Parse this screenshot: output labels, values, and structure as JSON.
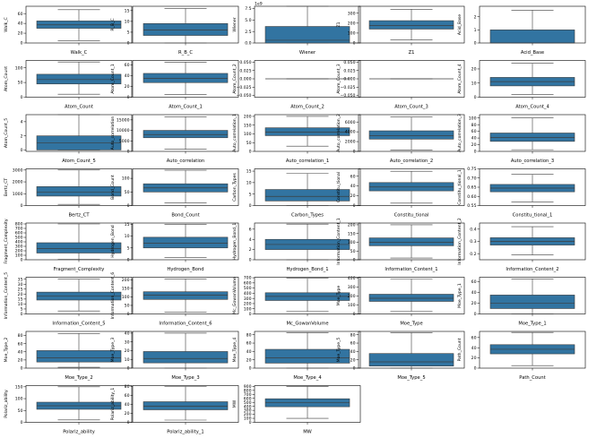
{
  "chart_data": [
    {
      "type": "box",
      "xlabel": "Walk_C",
      "ylabel": "Walk_C",
      "ylim": [
        0,
        75
      ],
      "yticks": [
        "0",
        "20",
        "40",
        "60"
      ],
      "yvals": [
        0,
        20,
        40,
        60
      ],
      "box": {
        "whislo": 5,
        "q1": 30,
        "med": 37,
        "q3": 45,
        "whishi": 68
      }
    },
    {
      "type": "box",
      "xlabel": "R_B_C",
      "ylabel": "R_B_C",
      "ylim": [
        0,
        17
      ],
      "yticks": [
        "0",
        "5",
        "10",
        "15"
      ],
      "yvals": [
        0,
        5,
        10,
        15
      ],
      "box": {
        "whislo": 0,
        "q1": 3.5,
        "med": 6,
        "q3": 9,
        "whishi": 16
      }
    },
    {
      "type": "box",
      "xlabel": "Wiener",
      "ylabel": "Wiener",
      "ylim": [
        0,
        8
      ],
      "yticks": [
        "0.0",
        "2.5",
        "5.0",
        "7.5"
      ],
      "yvals": [
        0,
        2.5,
        5,
        7.5
      ],
      "offset": "1e9",
      "box": {
        "whislo": 0,
        "q1": 0,
        "med": 0.6,
        "q3": 3.6,
        "whishi": 8
      }
    },
    {
      "type": "box",
      "xlabel": "Z1",
      "ylabel": "Z1",
      "ylim": [
        0,
        370
      ],
      "yticks": [
        "0",
        "100",
        "200",
        "300"
      ],
      "yvals": [
        0,
        100,
        200,
        300
      ],
      "box": {
        "whislo": 30,
        "q1": 140,
        "med": 175,
        "q3": 225,
        "whishi": 340
      }
    },
    {
      "type": "box",
      "xlabel": "Acid_Base",
      "ylabel": "Acid_Base",
      "ylim": [
        0,
        2.8
      ],
      "yticks": [
        "0",
        "1",
        "2"
      ],
      "yvals": [
        0,
        1,
        2
      ],
      "box": {
        "whislo": 0,
        "q1": 0,
        "med": 0,
        "q3": 1,
        "whishi": 2.5
      }
    },
    {
      "type": "box",
      "xlabel": "Atom_Count",
      "ylabel": "Atom_Count",
      "ylim": [
        0,
        125
      ],
      "yticks": [
        "0",
        "50",
        "100"
      ],
      "yvals": [
        0,
        50,
        100
      ],
      "box": {
        "whislo": 10,
        "q1": 45,
        "med": 60,
        "q3": 78,
        "whishi": 120
      }
    },
    {
      "type": "box",
      "xlabel": "Atom_Count_1",
      "ylabel": "Atom_Count_1",
      "ylim": [
        0,
        68
      ],
      "yticks": [
        "0",
        "20",
        "40",
        "60"
      ],
      "yvals": [
        0,
        20,
        40,
        60
      ],
      "box": {
        "whislo": 5,
        "q1": 27,
        "med": 35,
        "q3": 44,
        "whishi": 65
      }
    },
    {
      "type": "box",
      "xlabel": "Atom_Count_2",
      "ylabel": "Atom_Count_2",
      "ylim": [
        -0.055,
        0.055
      ],
      "yticks": [
        "−0.050",
        "−0.025",
        "0.000",
        "0.025",
        "0.050"
      ],
      "yvals": [
        -0.05,
        -0.025,
        0,
        0.025,
        0.05
      ],
      "box": {
        "whislo": 0,
        "q1": 0,
        "med": 0,
        "q3": 0,
        "whishi": 0
      }
    },
    {
      "type": "box",
      "xlabel": "Atom_Count_3",
      "ylabel": "Atom_Count_3",
      "ylim": [
        -0.055,
        0.055
      ],
      "yticks": [
        "−0.050",
        "−0.025",
        "0.000",
        "0.025",
        "0.050"
      ],
      "yvals": [
        -0.05,
        -0.025,
        0,
        0.025,
        0.05
      ],
      "box": {
        "whislo": 0,
        "q1": 0,
        "med": 0,
        "q3": 0,
        "whishi": 0
      }
    },
    {
      "type": "box",
      "xlabel": "Atom_Count_4",
      "ylabel": "Atom_Count_4",
      "ylim": [
        0,
        26
      ],
      "yticks": [
        "0",
        "10",
        "20"
      ],
      "yvals": [
        0,
        10,
        20
      ],
      "box": {
        "whislo": 2,
        "q1": 8,
        "med": 11,
        "q3": 14,
        "whishi": 24
      }
    },
    {
      "type": "box",
      "xlabel": "Atom_Count_5",
      "ylabel": "Atom_Count_5",
      "ylim": [
        -0.2,
        5
      ],
      "yticks": [
        "0",
        "2",
        "4"
      ],
      "yvals": [
        0,
        2,
        4
      ],
      "box": {
        "whislo": 0,
        "q1": 0,
        "med": 1,
        "q3": 2,
        "whishi": 5
      }
    },
    {
      "type": "box",
      "xlabel": "Auto_correlation",
      "ylabel": "Auto_correlation",
      "ylim": [
        0,
        17500
      ],
      "yticks": [
        "0",
        "5000",
        "10000",
        "15000"
      ],
      "yvals": [
        0,
        5000,
        10000,
        15000
      ],
      "box": {
        "whislo": 1000,
        "q1": 6500,
        "med": 8000,
        "q3": 10000,
        "whishi": 16500
      }
    },
    {
      "type": "box",
      "xlabel": "Auto_correlation_1",
      "ylabel": "Auto_correlation_1",
      "ylim": [
        0,
        210
      ],
      "yticks": [
        "0",
        "50",
        "100",
        "150",
        "200"
      ],
      "yvals": [
        0,
        50,
        100,
        150,
        200
      ],
      "box": {
        "whislo": 30,
        "q1": 90,
        "med": 110,
        "q3": 135,
        "whishi": 200
      }
    },
    {
      "type": "box",
      "xlabel": "Auto_correlation_2",
      "ylabel": "Auto_correlation_2",
      "ylim": [
        0,
        7500
      ],
      "yticks": [
        "0",
        "2000",
        "4000",
        "6000"
      ],
      "yvals": [
        0,
        2000,
        4000,
        6000
      ],
      "box": {
        "whislo": 300,
        "q1": 2500,
        "med": 3200,
        "q3": 4200,
        "whishi": 7000
      }
    },
    {
      "type": "box",
      "xlabel": "Auto_correlation_3",
      "ylabel": "Auto_correlation_3",
      "ylim": [
        0,
        110
      ],
      "yticks": [
        "0",
        "20",
        "40",
        "60",
        "80",
        "100"
      ],
      "yvals": [
        0,
        20,
        40,
        60,
        80,
        100
      ],
      "box": {
        "whislo": 5,
        "q1": 30,
        "med": 42,
        "q3": 55,
        "whishi": 100
      }
    },
    {
      "type": "box",
      "xlabel": "Bertz_CT",
      "ylabel": "Bertz_CT",
      "ylim": [
        0,
        3100
      ],
      "yticks": [
        "0",
        "1000",
        "2000",
        "3000"
      ],
      "yvals": [
        0,
        1000,
        2000,
        3000
      ],
      "box": {
        "whislo": 100,
        "q1": 800,
        "med": 1150,
        "q3": 1600,
        "whishi": 3000
      }
    },
    {
      "type": "box",
      "xlabel": "Bond_Count",
      "ylabel": "Bond_Count",
      "ylim": [
        0,
        135
      ],
      "yticks": [
        "0",
        "50",
        "100"
      ],
      "yvals": [
        0,
        50,
        100
      ],
      "box": {
        "whislo": 10,
        "q1": 50,
        "med": 65,
        "q3": 80,
        "whishi": 130
      }
    },
    {
      "type": "box",
      "xlabel": "Carbon_Types",
      "ylabel": "Carbon_Types",
      "ylim": [
        0,
        16
      ],
      "yticks": [
        "0",
        "5",
        "10",
        "15"
      ],
      "yvals": [
        0,
        5,
        10,
        15
      ],
      "box": {
        "whislo": 0,
        "q1": 2,
        "med": 4,
        "q3": 7,
        "whishi": 14
      }
    },
    {
      "type": "box",
      "xlabel": "Constitu_tional",
      "ylabel": "Constitu_tional",
      "ylim": [
        0,
        75
      ],
      "yticks": [
        "0",
        "20",
        "40",
        "60"
      ],
      "yvals": [
        0,
        20,
        40,
        60
      ],
      "box": {
        "whislo": 5,
        "q1": 30,
        "med": 38,
        "q3": 47,
        "whishi": 70
      }
    },
    {
      "type": "box",
      "xlabel": "Constitu_tional_1",
      "ylabel": "Constitu_tional_1",
      "ylim": [
        0.55,
        0.75
      ],
      "yticks": [
        "0.55",
        "0.60",
        "0.65",
        "0.70",
        "0.75"
      ],
      "yvals": [
        0.55,
        0.6,
        0.65,
        0.7,
        0.75
      ],
      "box": {
        "whislo": 0.57,
        "q1": 0.625,
        "med": 0.645,
        "q3": 0.665,
        "whishi": 0.72
      }
    },
    {
      "type": "box",
      "xlabel": "Fragment_Complexity",
      "ylabel": "Fragment_Complexity",
      "ylim": [
        0,
        820
      ],
      "yticks": [
        "0",
        "100",
        "200",
        "300",
        "400",
        "500",
        "600",
        "700",
        "800"
      ],
      "yvals": [
        0,
        100,
        200,
        300,
        400,
        500,
        600,
        700,
        800
      ],
      "box": {
        "whislo": 10,
        "q1": 150,
        "med": 250,
        "q3": 380,
        "whishi": 800
      }
    },
    {
      "type": "box",
      "xlabel": "Hydrogen_Bond",
      "ylabel": "Hydrogen_Bond",
      "ylim": [
        0,
        15.5
      ],
      "yticks": [
        "0",
        "5",
        "10",
        "15"
      ],
      "yvals": [
        0,
        5,
        10,
        15
      ],
      "box": {
        "whislo": 1,
        "q1": 5,
        "med": 7,
        "q3": 9.5,
        "whishi": 15
      }
    },
    {
      "type": "box",
      "xlabel": "Hydrogen_Bond_1",
      "ylabel": "Hydrogen_Bond_1",
      "ylim": [
        0,
        7.2
      ],
      "yticks": [
        "0",
        "2",
        "4",
        "6"
      ],
      "yvals": [
        0,
        2,
        4,
        6
      ],
      "box": {
        "whislo": 0,
        "q1": 2,
        "med": 3,
        "q3": 4,
        "whishi": 7
      }
    },
    {
      "type": "box",
      "xlabel": "Information_Content_1",
      "ylabel": "Information_Content_1",
      "ylim": [
        0,
        210
      ],
      "yticks": [
        "0",
        "50",
        "100",
        "150",
        "200"
      ],
      "yvals": [
        0,
        50,
        100,
        150,
        200
      ],
      "box": {
        "whislo": 10,
        "q1": 80,
        "med": 100,
        "q3": 125,
        "whishi": 200
      }
    },
    {
      "type": "box",
      "xlabel": "Information_Content_2",
      "ylabel": "Information_Content_2",
      "ylim": [
        0.15,
        0.45
      ],
      "yticks": [
        "0.2",
        "0.3",
        "0.4"
      ],
      "yvals": [
        0.2,
        0.3,
        0.4
      ],
      "box": {
        "whislo": 0.19,
        "q1": 0.27,
        "med": 0.3,
        "q3": 0.33,
        "whishi": 0.42
      }
    },
    {
      "type": "box",
      "xlabel": "Information_Content_5",
      "ylabel": "Information_Content_5",
      "ylim": [
        0,
        37
      ],
      "yticks": [
        "0",
        "5",
        "10",
        "15",
        "20",
        "25",
        "30",
        "35"
      ],
      "yvals": [
        0,
        5,
        10,
        15,
        20,
        25,
        30,
        35
      ],
      "box": {
        "whislo": 3,
        "q1": 14,
        "med": 18,
        "q3": 22,
        "whishi": 35
      }
    },
    {
      "type": "box",
      "xlabel": "Information_Content_6",
      "ylabel": "Information_Content_6",
      "ylim": [
        0,
        215
      ],
      "yticks": [
        "0",
        "50",
        "100",
        "150",
        "200"
      ],
      "yvals": [
        0,
        50,
        100,
        150,
        200
      ],
      "box": {
        "whislo": 10,
        "q1": 85,
        "med": 110,
        "q3": 130,
        "whishi": 205
      }
    },
    {
      "type": "box",
      "xlabel": "Mc_GowanVolume",
      "ylabel": "Mc_GowanVolume",
      "ylim": [
        0,
        710
      ],
      "yticks": [
        "0",
        "100",
        "200",
        "300",
        "400",
        "500",
        "600",
        "700"
      ],
      "yvals": [
        0,
        100,
        200,
        300,
        400,
        500,
        600,
        700
      ],
      "box": {
        "whislo": 50,
        "q1": 260,
        "med": 340,
        "q3": 410,
        "whishi": 690
      }
    },
    {
      "type": "box",
      "xlabel": "Moe_Type",
      "ylabel": "Moe_Type",
      "ylim": [
        0,
        410
      ],
      "yticks": [
        "0",
        "100",
        "200",
        "300",
        "400"
      ],
      "yvals": [
        0,
        100,
        200,
        300,
        400
      ],
      "box": {
        "whislo": 30,
        "q1": 140,
        "med": 175,
        "q3": 220,
        "whishi": 390
      }
    },
    {
      "type": "box",
      "xlabel": "Moe_Type_1",
      "ylabel": "Moe_Type_1",
      "ylim": [
        0,
        68
      ],
      "yticks": [
        "0",
        "20",
        "40",
        "60"
      ],
      "yvals": [
        0,
        20,
        40,
        60
      ],
      "box": {
        "whislo": 0,
        "q1": 10,
        "med": 20,
        "q3": 35,
        "whishi": 65
      }
    },
    {
      "type": "box",
      "xlabel": "Moe_Type_2",
      "ylabel": "Moe_Type_2",
      "ylim": [
        0,
        90
      ],
      "yticks": [
        "0",
        "20",
        "40",
        "60",
        "80"
      ],
      "yvals": [
        0,
        20,
        40,
        60,
        80
      ],
      "box": {
        "whislo": 2,
        "q1": 15,
        "med": 25,
        "q3": 43,
        "whishi": 85
      }
    },
    {
      "type": "box",
      "xlabel": "Moe_Type_3",
      "ylabel": "Moe_Type_3",
      "ylim": [
        0,
        42
      ],
      "yticks": [
        "0",
        "10",
        "20",
        "30",
        "40"
      ],
      "yvals": [
        0,
        10,
        20,
        30,
        40
      ],
      "box": {
        "whislo": 0,
        "q1": 6,
        "med": 11,
        "q3": 19,
        "whishi": 40
      }
    },
    {
      "type": "box",
      "xlabel": "Moe_Type_4",
      "ylabel": "Moe_Type_4",
      "ylim": [
        0,
        88
      ],
      "yticks": [
        "0",
        "20",
        "40",
        "60",
        "80"
      ],
      "yvals": [
        0,
        20,
        40,
        60,
        80
      ],
      "box": {
        "whislo": 0,
        "q1": 12,
        "med": 25,
        "q3": 45,
        "whishi": 85
      }
    },
    {
      "type": "box",
      "xlabel": "Moe_Type_5",
      "ylabel": "Moe_Type_5",
      "ylim": [
        0,
        88
      ],
      "yticks": [
        "0",
        "20",
        "40",
        "60",
        "80"
      ],
      "yvals": [
        0,
        20,
        40,
        60,
        80
      ],
      "box": {
        "whislo": 0,
        "q1": 5,
        "med": 15,
        "q3": 35,
        "whishi": 85
      }
    },
    {
      "type": "box",
      "xlabel": "Path_Count",
      "ylabel": "Path_Count",
      "ylim": [
        0,
        72
      ],
      "yticks": [
        "0",
        "20",
        "40",
        "60"
      ],
      "yvals": [
        0,
        20,
        40,
        60
      ],
      "box": {
        "whislo": 5,
        "q1": 28,
        "med": 37,
        "q3": 46,
        "whishi": 70
      }
    },
    {
      "type": "box",
      "xlabel": "Polariz_ability",
      "ylabel": "Polariz_ability",
      "ylim": [
        0,
        155
      ],
      "yticks": [
        "0",
        "50",
        "100",
        "150"
      ],
      "yvals": [
        0,
        50,
        100,
        150
      ],
      "box": {
        "whislo": 10,
        "q1": 55,
        "med": 70,
        "q3": 85,
        "whishi": 150
      }
    },
    {
      "type": "box",
      "xlabel": "Polariz_ability_1",
      "ylabel": "Polariz_ability_1",
      "ylim": [
        0,
        82
      ],
      "yticks": [
        "0",
        "20",
        "40",
        "60",
        "80"
      ],
      "yvals": [
        0,
        20,
        40,
        60,
        80
      ],
      "box": {
        "whislo": 5,
        "q1": 28,
        "med": 36,
        "q3": 46,
        "whishi": 80
      }
    },
    {
      "type": "box",
      "xlabel": "MW",
      "ylabel": "MW",
      "ylim": [
        0,
        920
      ],
      "yticks": [
        "0",
        "100",
        "200",
        "300",
        "400",
        "500",
        "600",
        "700",
        "800",
        "900"
      ],
      "yvals": [
        0,
        100,
        200,
        300,
        400,
        500,
        600,
        700,
        800,
        900
      ],
      "box": {
        "whislo": 100,
        "q1": 390,
        "med": 490,
        "q3": 590,
        "whishi": 900
      }
    }
  ],
  "colors": {
    "box_fill": "#3274a1",
    "box_edge": "#3d3d3d",
    "axis": "#000000"
  }
}
